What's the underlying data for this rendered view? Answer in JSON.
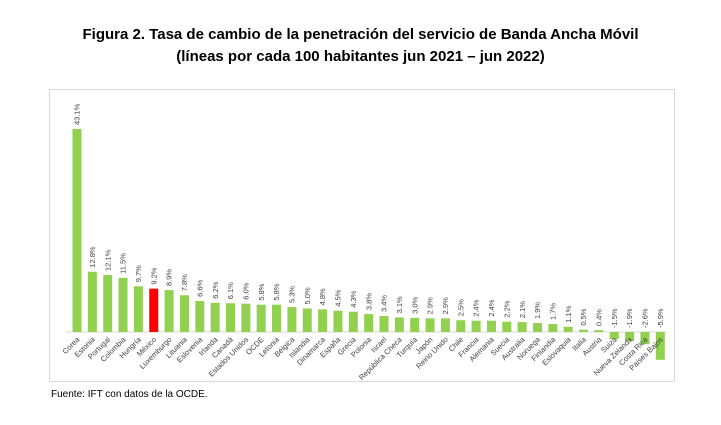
{
  "title_line1": "Figura 2. Tasa de cambio de la penetración del servicio de Banda Ancha Móvil",
  "title_line2": "(líneas por cada 100 habitantes jun 2021 – jun 2022)",
  "source": "Fuente: IFT con datos de la OCDE.",
  "colors": {
    "bar": "#92d050",
    "highlight": "#ff0000"
  },
  "chart_data": {
    "type": "bar",
    "title": "Figura 2. Tasa de cambio de la penetración del servicio de Banda Ancha Móvil (líneas por cada 100 habitantes jun 2021 – jun 2022)",
    "xlabel": "",
    "ylabel": "",
    "grid": false,
    "legend": "none",
    "highlight_category": "México",
    "categories": [
      "Corea",
      "Estonia",
      "Portugal",
      "Colombia",
      "Hungría",
      "México",
      "Luxemburgo",
      "Lituania",
      "Eslovenia",
      "Irlanda",
      "Canadá",
      "Estados Unidos",
      "OCDE",
      "Letonia",
      "Bélgica",
      "Islandia",
      "Dinamarca",
      "España",
      "Grecia",
      "Polonia",
      "Israel",
      "República Checa",
      "Turquía",
      "Japón",
      "Reino Unido",
      "Chile",
      "Francia",
      "Alemania",
      "Suecia",
      "Australia",
      "Noruega",
      "Finlandia",
      "Eslovaquia",
      "Italia",
      "Austria",
      "Suiza",
      "Nueva Zelanda",
      "Costa Rica",
      "Países Bajos"
    ],
    "values": [
      43.1,
      12.8,
      12.1,
      11.5,
      9.7,
      9.2,
      8.9,
      7.8,
      6.6,
      6.2,
      6.1,
      6.0,
      5.8,
      5.8,
      5.3,
      5.0,
      4.8,
      4.5,
      4.3,
      3.8,
      3.4,
      3.1,
      3.0,
      2.9,
      2.9,
      2.5,
      2.4,
      2.4,
      2.2,
      2.1,
      1.9,
      1.7,
      1.1,
      0.5,
      0.4,
      -1.5,
      -1.9,
      -2.6,
      -5.9
    ],
    "labels": [
      "43.1%",
      "12.8%",
      "12.1%",
      "11.5%",
      "9.7%",
      "9.2%",
      "8.9%",
      "7.8%",
      "6.6%",
      "6.2%",
      "6.1%",
      "6.0%",
      "5.8%",
      "5.8%",
      "5.3%",
      "5.0%",
      "4.8%",
      "4.5%",
      "4.3%",
      "3.8%",
      "3.4%",
      "3.1%",
      "3.0%",
      "2.9%",
      "2.9%",
      "2.5%",
      "2.4%",
      "2.4%",
      "2.2%",
      "2.1%",
      "1.9%",
      "1.7%",
      "1.1%",
      "0.5%",
      "0.4%",
      "-1.5%",
      "-1.9%",
      "-2.6%",
      "-5.9%"
    ],
    "ylim": [
      -6,
      43.1
    ]
  }
}
